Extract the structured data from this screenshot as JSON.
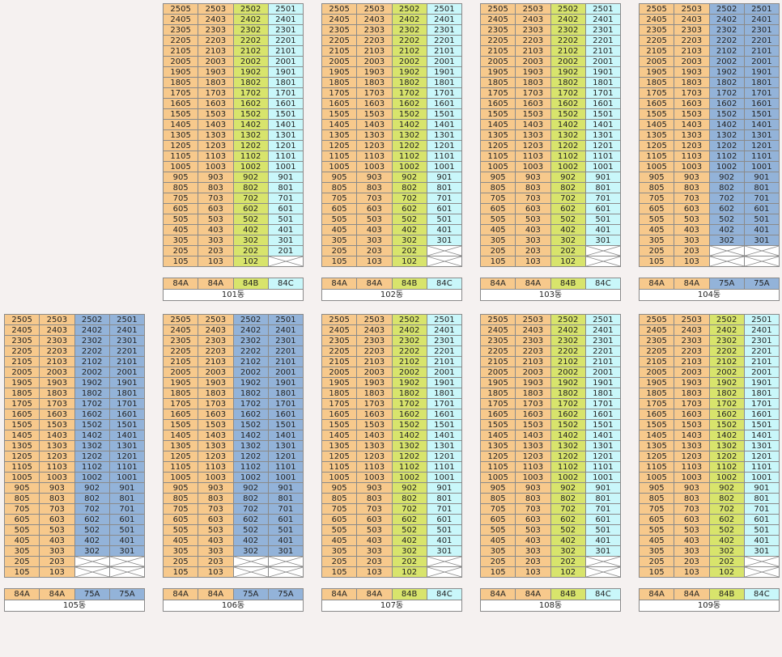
{
  "colors": {
    "84A": "#f7c98c",
    "84B": "#d8e46c",
    "84C": "#c9f7fa",
    "75A": "#93b3d9"
  },
  "floors": [
    25,
    24,
    23,
    22,
    21,
    20,
    19,
    18,
    17,
    16,
    15,
    14,
    13,
    12,
    11,
    10,
    9,
    8,
    7,
    6,
    5,
    4,
    3,
    2,
    1
  ],
  "unit_suffixes": [
    "05",
    "03",
    "02",
    "01"
  ],
  "buildings": [
    {
      "name": "101동",
      "types": [
        "84A",
        "84A",
        "84B",
        "84C"
      ],
      "min_floor": [
        1,
        1,
        1,
        2
      ]
    },
    {
      "name": "102동",
      "types": [
        "84A",
        "84A",
        "84B",
        "84C"
      ],
      "min_floor": [
        1,
        1,
        1,
        3
      ]
    },
    {
      "name": "103동",
      "types": [
        "84A",
        "84A",
        "84B",
        "84C"
      ],
      "min_floor": [
        1,
        1,
        1,
        3
      ]
    },
    {
      "name": "104동",
      "types": [
        "84A",
        "84A",
        "75A",
        "75A"
      ],
      "min_floor": [
        1,
        1,
        3,
        3
      ]
    },
    {
      "name": "105동",
      "types": [
        "84A",
        "84A",
        "75A",
        "75A"
      ],
      "min_floor": [
        1,
        1,
        3,
        3
      ]
    },
    {
      "name": "106동",
      "types": [
        "84A",
        "84A",
        "75A",
        "75A"
      ],
      "min_floor": [
        1,
        1,
        3,
        3
      ]
    },
    {
      "name": "107동",
      "types": [
        "84A",
        "84A",
        "84B",
        "84C"
      ],
      "min_floor": [
        1,
        1,
        1,
        3
      ]
    },
    {
      "name": "108동",
      "types": [
        "84A",
        "84A",
        "84B",
        "84C"
      ],
      "min_floor": [
        1,
        1,
        1,
        3
      ]
    },
    {
      "name": "109동",
      "types": [
        "84A",
        "84A",
        "84B",
        "84C"
      ],
      "min_floor": [
        1,
        1,
        1,
        3
      ]
    }
  ]
}
